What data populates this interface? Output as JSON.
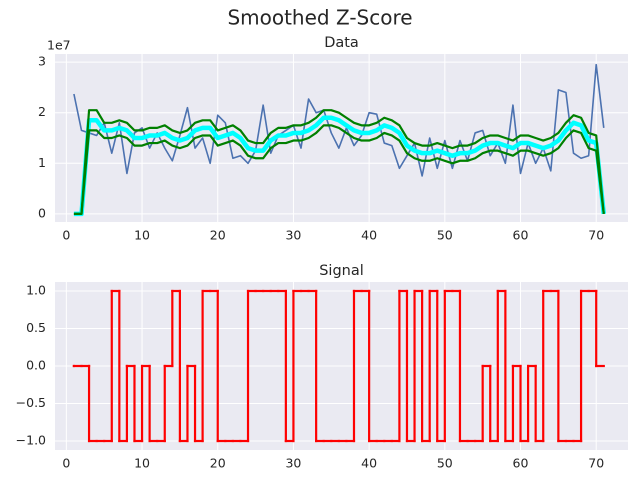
{
  "figure_title": "Smoothed Z-Score",
  "chart_data": [
    {
      "type": "line",
      "title": "Data",
      "offset_label": "1e7",
      "x": [
        1,
        2,
        3,
        4,
        5,
        6,
        7,
        8,
        9,
        10,
        11,
        12,
        13,
        14,
        15,
        16,
        17,
        18,
        19,
        20,
        21,
        22,
        23,
        24,
        25,
        26,
        27,
        28,
        29,
        30,
        31,
        32,
        33,
        34,
        35,
        36,
        37,
        38,
        39,
        40,
        41,
        42,
        43,
        44,
        45,
        46,
        47,
        48,
        49,
        50,
        51,
        52,
        53,
        54,
        55,
        56,
        57,
        58,
        59,
        60,
        61,
        62,
        63,
        64,
        65,
        66,
        67,
        68,
        69,
        70,
        71
      ],
      "series": [
        {
          "color": "#4c72b0",
          "values": [
            2.37,
            1.65,
            1.6,
            1.55,
            1.8,
            1.2,
            1.8,
            0.8,
            1.6,
            1.7,
            1.3,
            1.6,
            1.3,
            1.05,
            1.55,
            2.1,
            1.3,
            1.5,
            1.0,
            1.95,
            1.8,
            1.1,
            1.15,
            1.0,
            1.25,
            2.15,
            1.2,
            1.55,
            1.65,
            1.75,
            1.3,
            2.27,
            2.0,
            2.05,
            1.6,
            1.3,
            1.7,
            1.35,
            1.55,
            2.0,
            1.97,
            1.4,
            1.35,
            0.9,
            1.15,
            1.4,
            0.75,
            1.5,
            0.9,
            1.45,
            0.9,
            1.45,
            1.05,
            1.6,
            1.65,
            1.15,
            1.4,
            1.0,
            2.15,
            0.8,
            1.4,
            1.0,
            1.3,
            0.85,
            2.45,
            2.4,
            1.2,
            1.1,
            1.15,
            2.95,
            1.7
          ]
        },
        {
          "color": "#00ffff",
          "values": [
            0,
            0,
            1.85,
            1.85,
            1.65,
            1.65,
            1.7,
            1.65,
            1.5,
            1.5,
            1.55,
            1.55,
            1.6,
            1.5,
            1.45,
            1.5,
            1.65,
            1.7,
            1.7,
            1.5,
            1.55,
            1.6,
            1.5,
            1.3,
            1.25,
            1.25,
            1.45,
            1.55,
            1.55,
            1.6,
            1.6,
            1.65,
            1.75,
            1.9,
            1.9,
            1.85,
            1.75,
            1.65,
            1.6,
            1.6,
            1.65,
            1.75,
            1.7,
            1.6,
            1.35,
            1.25,
            1.2,
            1.2,
            1.25,
            1.2,
            1.15,
            1.2,
            1.2,
            1.25,
            1.35,
            1.4,
            1.4,
            1.35,
            1.3,
            1.4,
            1.4,
            1.35,
            1.3,
            1.35,
            1.45,
            1.65,
            1.8,
            1.75,
            1.45,
            1.4,
            0
          ]
        },
        {
          "color": "#008000",
          "values": [
            0,
            0,
            2.05,
            2.05,
            1.8,
            1.8,
            1.85,
            1.8,
            1.65,
            1.65,
            1.7,
            1.7,
            1.75,
            1.65,
            1.6,
            1.65,
            1.8,
            1.85,
            1.85,
            1.65,
            1.7,
            1.75,
            1.65,
            1.45,
            1.4,
            1.4,
            1.6,
            1.7,
            1.7,
            1.75,
            1.75,
            1.8,
            1.9,
            2.05,
            2.05,
            2.0,
            1.9,
            1.8,
            1.75,
            1.75,
            1.8,
            1.9,
            1.85,
            1.75,
            1.5,
            1.4,
            1.35,
            1.35,
            1.4,
            1.35,
            1.3,
            1.35,
            1.35,
            1.4,
            1.5,
            1.55,
            1.55,
            1.5,
            1.45,
            1.55,
            1.55,
            1.5,
            1.45,
            1.5,
            1.6,
            1.8,
            1.95,
            1.9,
            1.6,
            1.55,
            0
          ]
        },
        {
          "color": "#008000",
          "values": [
            0,
            0,
            1.65,
            1.65,
            1.5,
            1.5,
            1.55,
            1.5,
            1.35,
            1.35,
            1.4,
            1.4,
            1.45,
            1.35,
            1.3,
            1.35,
            1.5,
            1.55,
            1.55,
            1.35,
            1.4,
            1.45,
            1.35,
            1.15,
            1.1,
            1.1,
            1.3,
            1.4,
            1.4,
            1.45,
            1.45,
            1.5,
            1.6,
            1.75,
            1.75,
            1.7,
            1.6,
            1.5,
            1.45,
            1.45,
            1.5,
            1.6,
            1.55,
            1.45,
            1.2,
            1.1,
            1.05,
            1.05,
            1.1,
            1.05,
            1.0,
            1.05,
            1.05,
            1.1,
            1.2,
            1.25,
            1.25,
            1.2,
            1.15,
            1.25,
            1.25,
            1.2,
            1.15,
            1.2,
            1.3,
            1.5,
            1.65,
            1.6,
            1.3,
            1.25,
            0
          ]
        }
      ],
      "xlim": [
        -1.5,
        74.2
      ],
      "xticks": [
        0,
        10,
        20,
        30,
        40,
        50,
        60,
        70
      ],
      "ylim": [
        -0.16,
        3.16
      ],
      "yticks": [
        0,
        1,
        2,
        3
      ],
      "grid": true
    },
    {
      "type": "line",
      "title": "Signal",
      "drawstyle": "steps-pre",
      "x": [
        1,
        2,
        3,
        4,
        5,
        6,
        7,
        8,
        9,
        10,
        11,
        12,
        13,
        14,
        15,
        16,
        17,
        18,
        19,
        20,
        21,
        22,
        23,
        24,
        25,
        26,
        27,
        28,
        29,
        30,
        31,
        32,
        33,
        34,
        35,
        36,
        37,
        38,
        39,
        40,
        41,
        42,
        43,
        44,
        45,
        46,
        47,
        48,
        49,
        50,
        51,
        52,
        53,
        54,
        55,
        56,
        57,
        58,
        59,
        60,
        61,
        62,
        63,
        64,
        65,
        66,
        67,
        68,
        69,
        70,
        71
      ],
      "series": [
        {
          "color": "#ff0000",
          "values": [
            0,
            0,
            0,
            -1,
            -1,
            -1,
            1,
            -1,
            0,
            -1,
            0,
            -1,
            -1,
            0,
            1,
            -1,
            0,
            -1,
            1,
            1,
            -1,
            -1,
            -1,
            -1,
            1,
            1,
            1,
            1,
            1,
            -1,
            1,
            1,
            1,
            -1,
            -1,
            -1,
            -1,
            -1,
            1,
            1,
            -1,
            -1,
            -1,
            -1,
            1,
            -1,
            1,
            -1,
            1,
            -1,
            1,
            1,
            -1,
            -1,
            -1,
            0,
            -1,
            1,
            -1,
            0,
            -1,
            0,
            -1,
            1,
            1,
            -1,
            -1,
            -1,
            1,
            1,
            0
          ]
        }
      ],
      "xlim": [
        -1.5,
        74.2
      ],
      "xticks": [
        0,
        10,
        20,
        30,
        40,
        50,
        60,
        70
      ],
      "ylim": [
        -1.12,
        1.12
      ],
      "yticks": [
        {
          "value": -1,
          "label": "−1.0"
        },
        {
          "value": -0.5,
          "label": "−0.5"
        },
        {
          "value": 0,
          "label": "0.0"
        },
        {
          "value": 0.5,
          "label": "0.5"
        },
        {
          "value": 1,
          "label": "1.0"
        }
      ],
      "grid": true
    }
  ]
}
